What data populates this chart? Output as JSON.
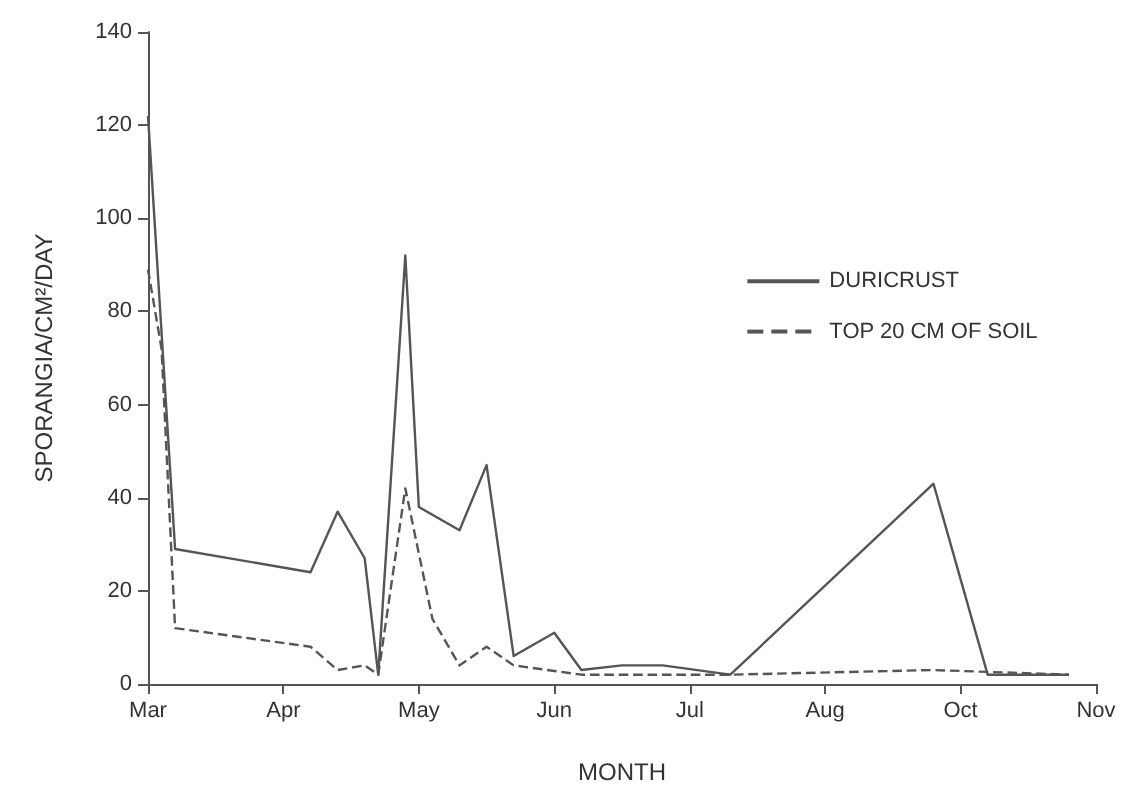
{
  "chart_data": {
    "type": "line",
    "xlabel": "MONTH",
    "ylabel": "SPORANGIA/CM²/DAY",
    "categories": [
      "Mar",
      null,
      null,
      null,
      null,
      null,
      null,
      null,
      null,
      null,
      "Apr",
      null,
      null,
      null,
      null,
      null,
      null,
      null,
      null,
      null,
      "May",
      null,
      null,
      null,
      null,
      null,
      null,
      null,
      null,
      null,
      "Jun",
      null,
      null,
      null,
      null,
      null,
      null,
      null,
      null,
      null,
      "Jul",
      null,
      null,
      null,
      null,
      null,
      null,
      null,
      null,
      null,
      "Aug",
      null,
      null,
      null,
      null,
      null,
      null,
      null,
      null,
      null,
      "Oct",
      null,
      null,
      null,
      null,
      null,
      null,
      null,
      null,
      null,
      "Nov"
    ],
    "ylim": [
      0,
      140
    ],
    "yticks": [
      0,
      20,
      40,
      60,
      80,
      100,
      120,
      140
    ],
    "grid": false,
    "legend": "right",
    "marker": "none",
    "series": [
      {
        "name": "DURICRUST",
        "color": "#555555",
        "line_style": "solid",
        "values": [
          122,
          null,
          29,
          null,
          null,
          null,
          null,
          null,
          null,
          null,
          null,
          null,
          24,
          null,
          37,
          null,
          27,
          2,
          47,
          92,
          38,
          null,
          null,
          33,
          null,
          47,
          null,
          6,
          null,
          null,
          11,
          null,
          3,
          null,
          null,
          4,
          null,
          null,
          4,
          null,
          null,
          null,
          null,
          2,
          null,
          null,
          null,
          null,
          null,
          null,
          null,
          null,
          null,
          null,
          null,
          null,
          null,
          null,
          43,
          null,
          null,
          null,
          2,
          null,
          null,
          null,
          null,
          null,
          2,
          null,
          null
        ]
      },
      {
        "name": "TOP 20 CM OF SOIL",
        "color": "#555555",
        "line_style": "dashed",
        "values": [
          89,
          72,
          12,
          null,
          null,
          null,
          null,
          null,
          null,
          null,
          null,
          null,
          8,
          null,
          3,
          null,
          4,
          2,
          null,
          42,
          null,
          14,
          null,
          4,
          null,
          8,
          null,
          4,
          null,
          null,
          null,
          null,
          2,
          null,
          null,
          null,
          null,
          null,
          null,
          null,
          null,
          null,
          null,
          2,
          null,
          null,
          null,
          null,
          null,
          null,
          null,
          null,
          null,
          null,
          null,
          null,
          null,
          null,
          3,
          null,
          null,
          null,
          null,
          null,
          null,
          null,
          null,
          null,
          2,
          null,
          null
        ]
      }
    ]
  }
}
